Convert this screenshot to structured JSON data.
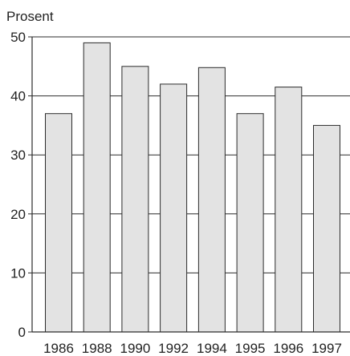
{
  "chart_data": {
    "type": "bar",
    "title": "",
    "xlabel": "",
    "ylabel": "Prosent",
    "categories": [
      "1986",
      "1988",
      "1990",
      "1992",
      "1994",
      "1995",
      "1996",
      "1997"
    ],
    "values": [
      37,
      49,
      45,
      42,
      44.8,
      37,
      41.5,
      35
    ],
    "ylim": [
      0,
      50
    ],
    "yticks": [
      0,
      10,
      20,
      30,
      40,
      50
    ],
    "grid": true,
    "legend": "none",
    "colors": {
      "bar_fill": "#e3e3e3",
      "bar_stroke": "#2b2b2b",
      "axis": "#2b2b2b",
      "grid": "#2b2b2b",
      "text": "#222222"
    }
  }
}
